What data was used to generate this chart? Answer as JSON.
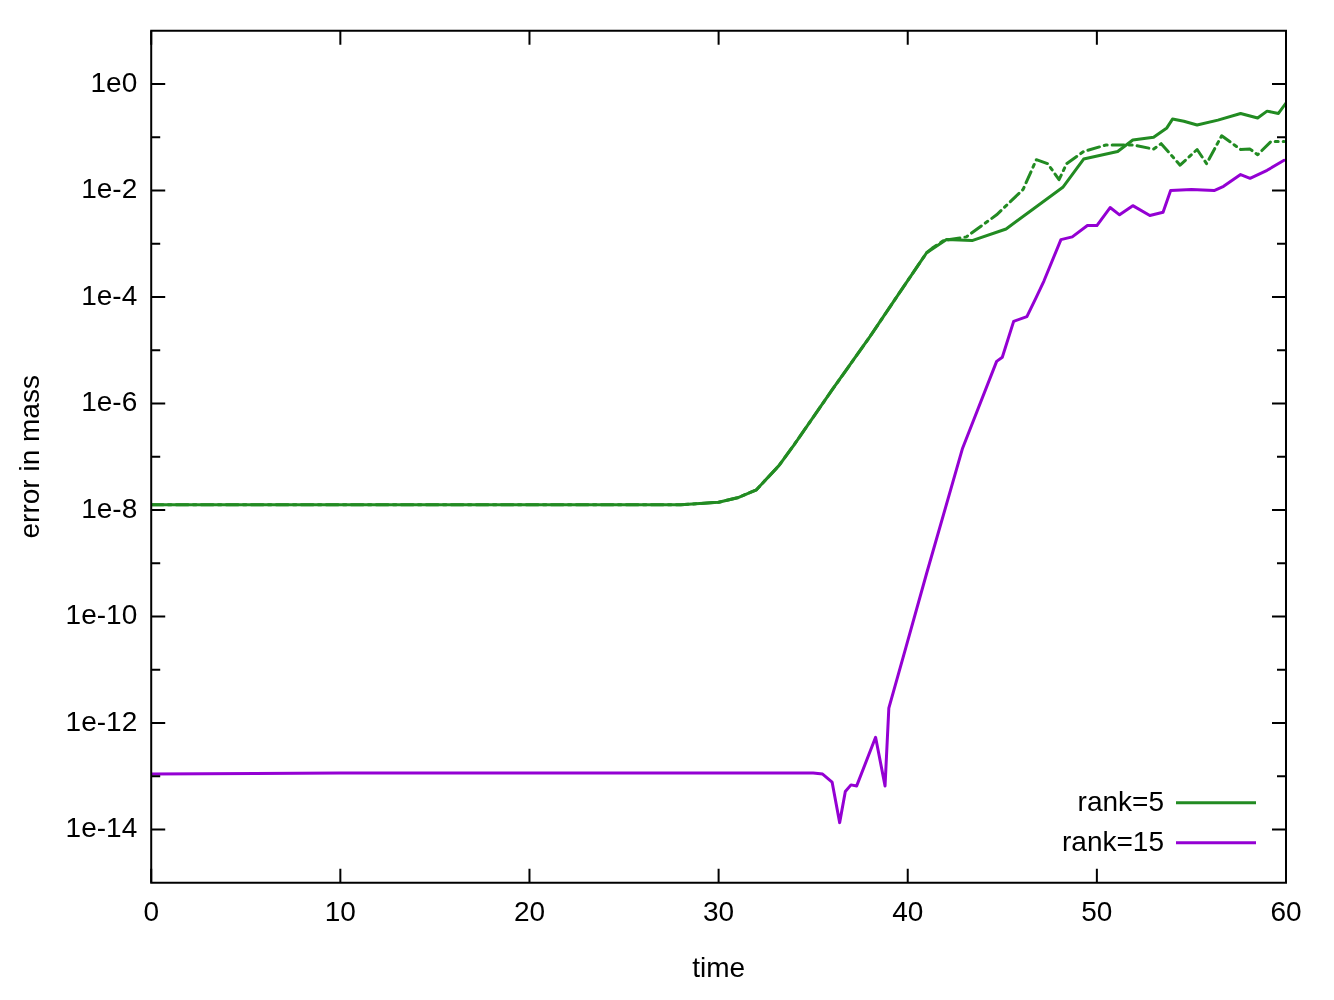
{
  "chart_data": {
    "type": "line",
    "xlabel": "time",
    "ylabel": "error in mass",
    "log": "y",
    "grid": false,
    "legend": "bottom right",
    "xlim": [
      0,
      60
    ],
    "xticks": [
      0,
      10,
      20,
      30,
      40,
      50,
      60
    ],
    "ylim": [
      1e-15,
      10
    ],
    "yticks": [
      {
        "value": 1,
        "label": "1e0"
      },
      {
        "value": 0.1,
        "label": null
      },
      {
        "value": 0.01,
        "label": "1e-2"
      },
      {
        "value": 0.001,
        "label": null
      },
      {
        "value": 0.0001,
        "label": "1e-4"
      },
      {
        "value": 1e-05,
        "label": null
      },
      {
        "value": 1e-06,
        "label": "1e-6"
      },
      {
        "value": 1e-07,
        "label": null
      },
      {
        "value": 1e-08,
        "label": "1e-8"
      },
      {
        "value": 1e-09,
        "label": null
      },
      {
        "value": 1e-10,
        "label": "1e-10"
      },
      {
        "value": 1e-11,
        "label": null
      },
      {
        "value": 1e-12,
        "label": "1e-12"
      },
      {
        "value": 1e-13,
        "label": null
      },
      {
        "value": 1e-14,
        "label": "1e-14"
      }
    ],
    "series": [
      {
        "name": "rank=5",
        "color": "#228b22",
        "x": [
          0,
          28,
          30,
          31,
          32,
          33.2,
          34,
          36,
          38,
          39.56,
          41,
          42.05,
          43.4,
          45.2,
          46.6,
          48.2,
          49.3,
          51.1,
          51.9,
          53,
          53.7,
          54,
          54.6,
          55.3,
          56.4,
          57.6,
          58.5,
          59,
          59.6,
          60
        ],
        "values": [
          1.26e-08,
          1.26e-08,
          1.4e-08,
          1.7e-08,
          2.4e-08,
          6.9e-08,
          1.7e-07,
          1.8e-06,
          1.8e-05,
          0.00012,
          0.00068,
          0.0012,
          0.00115,
          0.0019,
          0.0044,
          0.0115,
          0.039,
          0.054,
          0.089,
          0.1,
          0.15,
          0.22,
          0.2,
          0.17,
          0.21,
          0.28,
          0.23,
          0.31,
          0.28,
          0.44
        ]
      },
      {
        "color": "#228b22",
        "line_style": "dashed",
        "x": [
          0,
          28,
          30,
          31,
          32,
          33.2,
          34,
          36,
          38,
          39.56,
          41,
          41.3,
          41.9,
          43.1,
          44.7,
          46.1,
          46.8,
          47.4,
          48,
          48.4,
          49.3,
          50.5,
          51.9,
          53,
          53.4,
          54.4,
          55.3,
          55.8,
          56.6,
          57.6,
          58.1,
          58.5,
          59.2,
          59.9
        ],
        "values": [
          1.26e-08,
          1.26e-08,
          1.4e-08,
          1.7e-08,
          2.4e-08,
          6.9e-08,
          1.7e-07,
          1.8e-06,
          1.8e-05,
          0.00012,
          0.00068,
          0.00083,
          0.00115,
          0.00135,
          0.0035,
          0.0105,
          0.038,
          0.032,
          0.016,
          0.032,
          0.054,
          0.072,
          0.072,
          0.06,
          0.076,
          0.03,
          0.059,
          0.032,
          0.107,
          0.059,
          0.06,
          0.047,
          0.083,
          0.083
        ]
      },
      {
        "name": "rank=15",
        "color": "#9400d3",
        "x": [
          0,
          10,
          20,
          30,
          35,
          35.5,
          36,
          36.4,
          36.7,
          37,
          37.3,
          38.3,
          38.8,
          39,
          39.9,
          41,
          42.9,
          44.7,
          45,
          45.6,
          46.3,
          46.8,
          47.2,
          48.1,
          48.7,
          49.5,
          50,
          50.7,
          51.2,
          51.9,
          52.8,
          53.5,
          53.9,
          55,
          56.2,
          56.7,
          57.6,
          58.1,
          59,
          59.9
        ],
        "values": [
          1.1e-13,
          1.15e-13,
          1.15e-13,
          1.15e-13,
          1.15e-13,
          1.1e-13,
          7.8e-14,
          1.35e-14,
          5.2e-14,
          6.9e-14,
          6.6e-14,
          5.4e-13,
          6.6e-14,
          1.9e-12,
          2.6e-11,
          6.5e-10,
          1.45e-07,
          6.2e-06,
          7.4e-06,
          3.5e-05,
          4.3e-05,
          0.0001,
          0.0002,
          0.0012,
          0.00135,
          0.0022,
          0.0022,
          0.0048,
          0.0035,
          0.0052,
          0.0034,
          0.0039,
          0.01,
          0.0105,
          0.01,
          0.012,
          0.02,
          0.017,
          0.024,
          0.037
        ]
      }
    ]
  }
}
